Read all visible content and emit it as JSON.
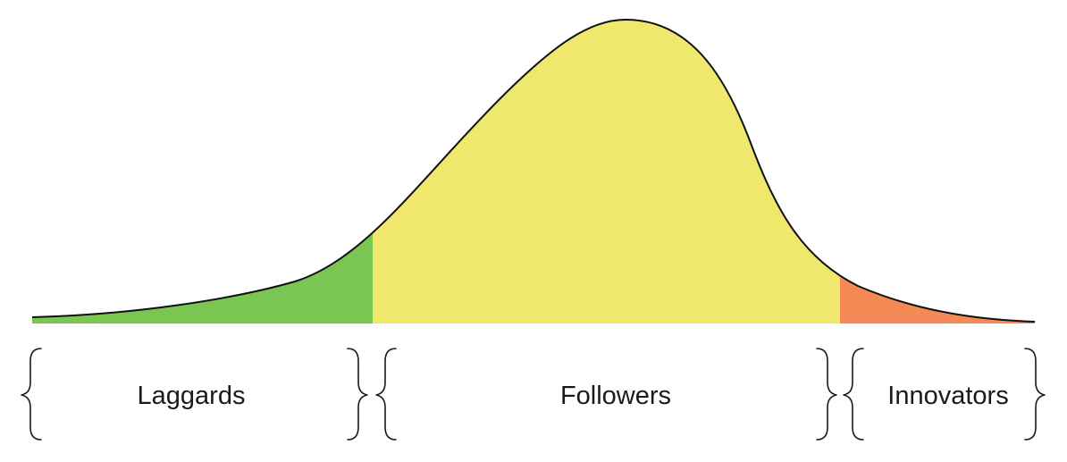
{
  "segments": [
    {
      "id": "laggards",
      "label": "Laggards",
      "color": "#7bc653"
    },
    {
      "id": "followers",
      "label": "Followers",
      "color": "#efe86c"
    },
    {
      "id": "innovators",
      "label": "Innovators",
      "color": "#f58a56"
    }
  ]
}
